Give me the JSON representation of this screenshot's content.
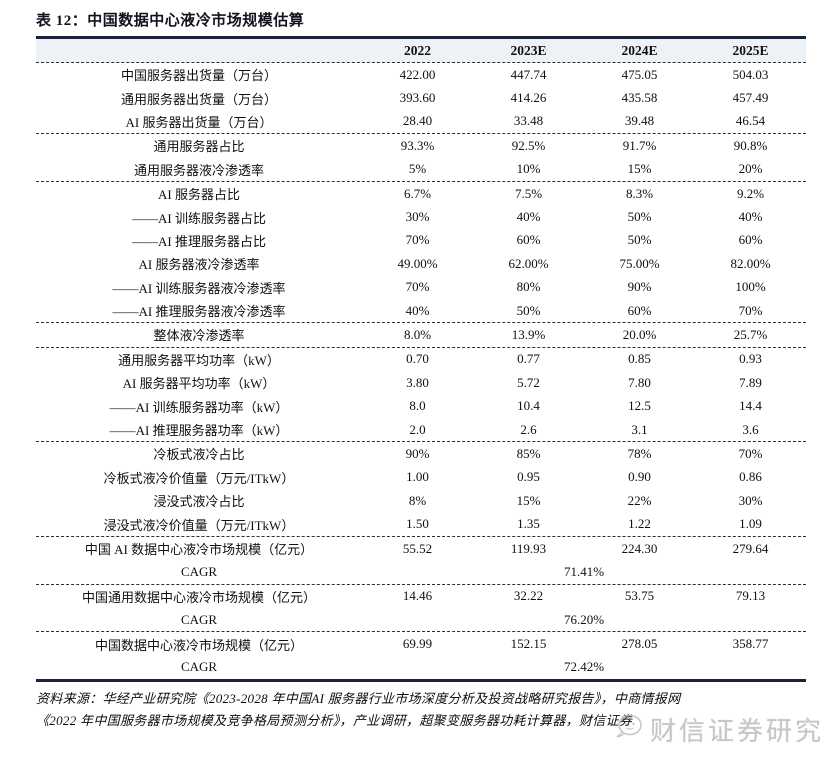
{
  "page": {
    "title": "表 12：中国数据中心液冷市场规模估算",
    "source_line1": "资料来源：华经产业研究院《2023-2028 年中国AI 服务器行业市场深度分析及投资战略研究报告》，中商情报网",
    "source_line2": "《2022 年中国服务器市场规模及竞争格局预测分析》，产业调研，超聚变服务器功耗计算器，财信证券",
    "watermark_text": "财信证券研究"
  },
  "colors": {
    "rule_thick": "#1a2339",
    "rule_dashed": "#2e2e2e",
    "header_bg": "#edf2f7",
    "text": "#101010",
    "watermark": "#bdbdbd"
  },
  "table": {
    "columns": [
      "2022",
      "2023E",
      "2024E",
      "2025E"
    ],
    "rows": [
      {
        "label": "中国服务器出货量（万台）",
        "values": [
          "422.00",
          "447.74",
          "475.05",
          "504.03"
        ]
      },
      {
        "label": "通用服务器出货量（万台）",
        "values": [
          "393.60",
          "414.26",
          "435.58",
          "457.49"
        ]
      },
      {
        "label": "AI 服务器出货量（万台）",
        "values": [
          "28.40",
          "33.48",
          "39.48",
          "46.54"
        ],
        "sep": "dashed"
      },
      {
        "label": "通用服务器占比",
        "values": [
          "93.3%",
          "92.5%",
          "91.7%",
          "90.8%"
        ]
      },
      {
        "label": "通用服务器液冷渗透率",
        "values": [
          "5%",
          "10%",
          "15%",
          "20%"
        ],
        "sep": "dashed"
      },
      {
        "label": "AI 服务器占比",
        "values": [
          "6.7%",
          "7.5%",
          "8.3%",
          "9.2%"
        ]
      },
      {
        "label": "——AI 训练服务器占比",
        "values": [
          "30%",
          "40%",
          "50%",
          "40%"
        ]
      },
      {
        "label": "——AI 推理服务器占比",
        "values": [
          "70%",
          "60%",
          "50%",
          "60%"
        ]
      },
      {
        "label": "AI 服务器液冷渗透率",
        "values": [
          "49.00%",
          "62.00%",
          "75.00%",
          "82.00%"
        ]
      },
      {
        "label": "——AI 训练服务器液冷渗透率",
        "values": [
          "70%",
          "80%",
          "90%",
          "100%"
        ]
      },
      {
        "label": "——AI 推理服务器液冷渗透率",
        "values": [
          "40%",
          "50%",
          "60%",
          "70%"
        ],
        "sep": "dashed"
      },
      {
        "label": "整体液冷渗透率",
        "values": [
          "8.0%",
          "13.9%",
          "20.0%",
          "25.7%"
        ],
        "sep": "dashed"
      },
      {
        "label": "通用服务器平均功率（kW）",
        "values": [
          "0.70",
          "0.77",
          "0.85",
          "0.93"
        ]
      },
      {
        "label": "AI 服务器平均功率（kW）",
        "values": [
          "3.80",
          "5.72",
          "7.80",
          "7.89"
        ]
      },
      {
        "label": "——AI 训练服务器功率（kW）",
        "values": [
          "8.0",
          "10.4",
          "12.5",
          "14.4"
        ]
      },
      {
        "label": "——AI 推理服务器功率（kW）",
        "values": [
          "2.0",
          "2.6",
          "3.1",
          "3.6"
        ],
        "sep": "dashed"
      },
      {
        "label": "冷板式液冷占比",
        "values": [
          "90%",
          "85%",
          "78%",
          "70%"
        ]
      },
      {
        "label": "冷板式液冷价值量（万元/ITkW）",
        "values": [
          "1.00",
          "0.95",
          "0.90",
          "0.86"
        ]
      },
      {
        "label": "浸没式液冷占比",
        "values": [
          "8%",
          "15%",
          "22%",
          "30%"
        ]
      },
      {
        "label": "浸没式液冷价值量（万元/ITkW）",
        "values": [
          "1.50",
          "1.35",
          "1.22",
          "1.09"
        ],
        "sep": "dashed"
      },
      {
        "label": "中国 AI 数据中心液冷市场规模（亿元）",
        "values": [
          "55.52",
          "119.93",
          "224.30",
          "279.64"
        ]
      },
      {
        "label": "CAGR",
        "merged_value": "71.41%",
        "sep": "dashed"
      },
      {
        "label": "中国通用数据中心液冷市场规模（亿元）",
        "values": [
          "14.46",
          "32.22",
          "53.75",
          "79.13"
        ]
      },
      {
        "label": "CAGR",
        "merged_value": "76.20%",
        "sep": "dashed"
      },
      {
        "label": "中国数据中心液冷市场规模（亿元）",
        "values": [
          "69.99",
          "152.15",
          "278.05",
          "358.77"
        ]
      },
      {
        "label": "CAGR",
        "merged_value": "72.42%"
      }
    ]
  }
}
